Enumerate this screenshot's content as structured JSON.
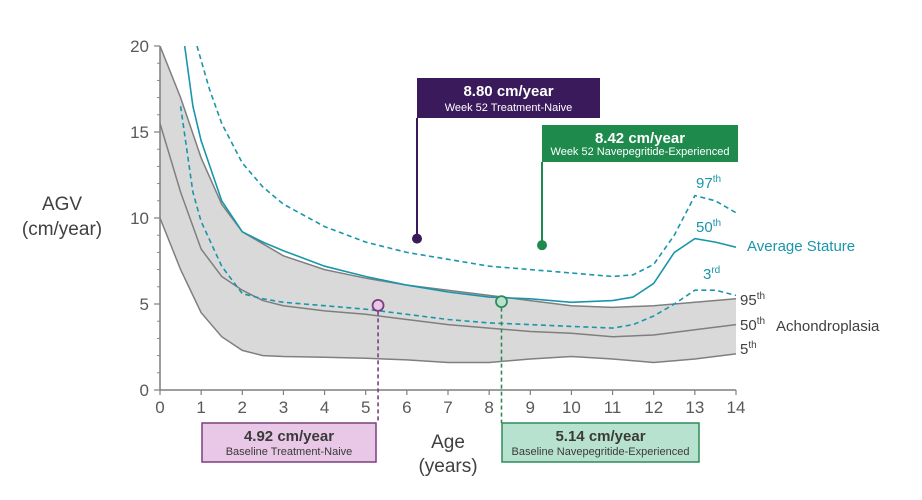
{
  "chart_data": {
    "type": "line",
    "title": "",
    "xlabel": "Age\n(years)",
    "ylabel": "AGV\n(cm/year)",
    "xlim": [
      0,
      14
    ],
    "ylim": [
      0,
      20
    ],
    "xticks": [
      0,
      1,
      2,
      3,
      4,
      5,
      6,
      7,
      8,
      9,
      10,
      11,
      12,
      13,
      14
    ],
    "yticks": [
      0,
      5,
      10,
      15,
      20
    ],
    "grid": false,
    "colors": {
      "band_fill": "#d9d9d9",
      "achondroplasia": "#7f7f7f",
      "average_stature": "#1a96aa",
      "treatment_naive": "#3b1a5c",
      "navepegritide_experienced": "#1e8a4c",
      "baseline_naive_fill": "#e8c8e6",
      "baseline_naive_border": "#7a3f7e",
      "baseline_experienced_fill": "#b8e2d0",
      "baseline_experienced_border": "#2e8b57"
    },
    "groups": {
      "achondroplasia": "Achondroplasia",
      "average_stature": "Average Stature"
    },
    "series": [
      {
        "group": "achondroplasia",
        "percentile": "95",
        "suffix": "th",
        "x": [
          0,
          0.5,
          1,
          1.5,
          2,
          2.5,
          3,
          4,
          5,
          6,
          7,
          8,
          9,
          10,
          11,
          12,
          13,
          14
        ],
        "y": [
          20,
          17,
          13.5,
          10.8,
          9.2,
          8.5,
          7.8,
          7.0,
          6.5,
          6.1,
          5.8,
          5.5,
          5.2,
          4.9,
          4.8,
          4.9,
          5.1,
          5.3
        ]
      },
      {
        "group": "achondroplasia",
        "percentile": "50",
        "suffix": "th",
        "x": [
          0,
          0.5,
          1,
          1.5,
          2,
          2.5,
          3,
          4,
          5,
          6,
          7,
          8,
          9,
          10,
          11,
          12,
          13,
          14
        ],
        "y": [
          15.5,
          11.5,
          8.2,
          6.6,
          5.8,
          5.2,
          4.9,
          4.6,
          4.4,
          4.1,
          3.8,
          3.6,
          3.4,
          3.3,
          3.1,
          3.2,
          3.5,
          3.8
        ]
      },
      {
        "group": "achondroplasia",
        "percentile": "5",
        "suffix": "th",
        "x": [
          0,
          0.5,
          1,
          1.5,
          2,
          2.5,
          3,
          4,
          5,
          6,
          7,
          8,
          9,
          10,
          11,
          12,
          13,
          14
        ],
        "y": [
          10,
          7.0,
          4.5,
          3.1,
          2.3,
          2.0,
          1.95,
          1.9,
          1.85,
          1.75,
          1.6,
          1.6,
          1.8,
          1.95,
          1.8,
          1.6,
          1.8,
          2.1
        ]
      },
      {
        "group": "average_stature",
        "percentile": "97",
        "suffix": "th",
        "x": [
          0.9,
          1.2,
          1.5,
          2,
          2.5,
          3,
          4,
          5,
          6,
          7,
          8,
          9,
          10,
          11,
          11.5,
          12,
          12.5,
          13,
          13.5,
          14
        ],
        "y": [
          20,
          17.5,
          15.5,
          13.2,
          11.8,
          10.8,
          9.5,
          8.6,
          8.0,
          7.6,
          7.2,
          7.0,
          6.8,
          6.6,
          6.7,
          7.3,
          9.0,
          11.3,
          11.0,
          10.3
        ]
      },
      {
        "group": "average_stature",
        "percentile": "50",
        "suffix": "th",
        "x": [
          0.6,
          0.8,
          1,
          1.5,
          2,
          2.5,
          3,
          4,
          5,
          6,
          7,
          8,
          9,
          10,
          11,
          11.5,
          12,
          12.5,
          13,
          13.5,
          14
        ],
        "y": [
          20,
          16.5,
          14.5,
          11.0,
          9.2,
          8.6,
          8.1,
          7.2,
          6.6,
          6.1,
          5.7,
          5.4,
          5.3,
          5.1,
          5.2,
          5.4,
          6.2,
          8.0,
          8.8,
          8.6,
          8.3
        ]
      },
      {
        "group": "average_stature",
        "percentile": "3",
        "suffix": "rd",
        "x": [
          0.5,
          0.8,
          1,
          1.5,
          2,
          2.5,
          3,
          4,
          5,
          6,
          7,
          8,
          9,
          10,
          11,
          11.5,
          12,
          12.5,
          13,
          13.5,
          14
        ],
        "y": [
          16.5,
          11.5,
          9.8,
          7.2,
          5.6,
          5.3,
          5.1,
          4.9,
          4.7,
          4.4,
          4.1,
          3.9,
          3.8,
          3.7,
          3.6,
          3.8,
          4.3,
          5.0,
          5.8,
          5.8,
          5.5
        ]
      }
    ],
    "points": [
      {
        "id": "baseline-naive",
        "x": 5.3,
        "y": 4.92,
        "style": "open",
        "value_label": "4.92 cm/year",
        "sub_label": "Baseline Treatment-Naive"
      },
      {
        "id": "baseline-experienced",
        "x": 8.3,
        "y": 5.14,
        "style": "open",
        "value_label": "5.14 cm/year",
        "sub_label": "Baseline Navepegritide-Experienced"
      },
      {
        "id": "week52-naive",
        "x": 6.3,
        "y": 8.8,
        "style": "filled",
        "value_label": "8.80 cm/year",
        "sub_label": "Week 52 Treatment-Naive"
      },
      {
        "id": "week52-experienced",
        "x": 9.3,
        "y": 8.42,
        "style": "filled",
        "value_label": "8.42 cm/year",
        "sub_label": "Week 52 Navepegritide-Experienced"
      }
    ]
  }
}
